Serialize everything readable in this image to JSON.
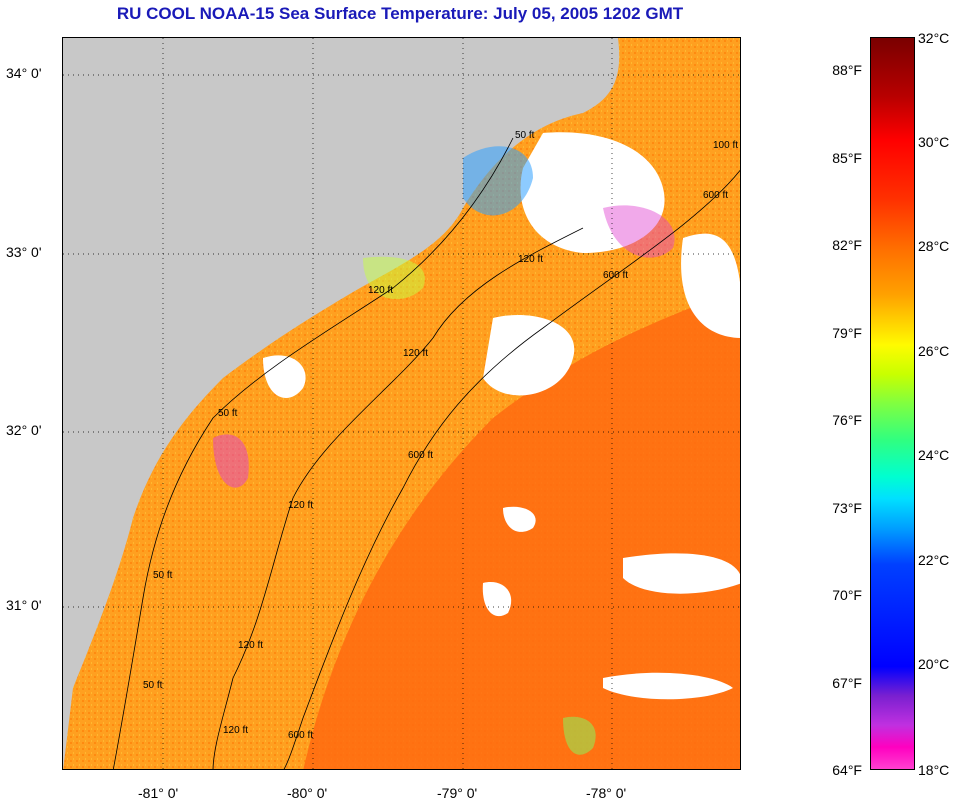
{
  "title": "RU COOL  NOAA-15  Sea Surface Temperature:  July 05, 2005 1202 GMT",
  "latitude_labels": [
    "34° 0'",
    "33° 0'",
    "32° 0'",
    "31° 0'"
  ],
  "longitude_labels": [
    "-81° 0'",
    "-80° 0'",
    "-79° 0'",
    "-78° 0'"
  ],
  "contour_labels": [
    "50 ft",
    "50 ft",
    "50 ft",
    "50 ft",
    "120 ft",
    "120 ft",
    "120 ft",
    "120 ft",
    "120 ft",
    "120 ft",
    "600 ft",
    "600 ft",
    "600 ft",
    "600 ft",
    "100 ft"
  ],
  "colorbar": {
    "fahrenheit_labels": [
      "88°F",
      "85°F",
      "82°F",
      "79°F",
      "76°F",
      "73°F",
      "70°F",
      "67°F",
      "64°F"
    ],
    "celsius_labels": [
      "32°C",
      "30°C",
      "28°C",
      "26°C",
      "24°C",
      "22°C",
      "20°C",
      "18°C"
    ],
    "range_celsius": [
      18,
      32
    ],
    "range_fahrenheit": [
      64,
      90
    ]
  },
  "colors": {
    "title": "#1a1ab8",
    "land": "#c8c8c8",
    "warm_water": "#ff9a1a",
    "gulf_stream": "#ff6a10",
    "cloud_mask": "#ffffff"
  }
}
